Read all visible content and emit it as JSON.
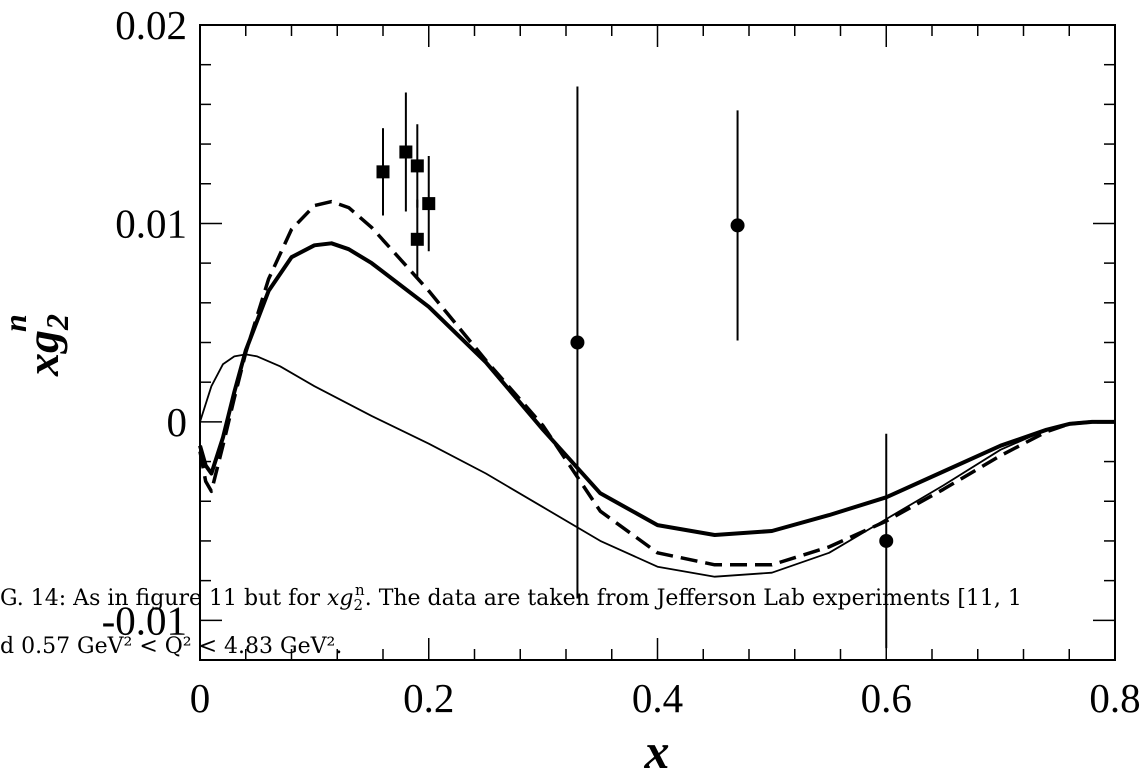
{
  "chart_data": {
    "type": "line",
    "xlabel": "x",
    "ylabel": {
      "base": "xg",
      "sub": "2",
      "sup": "n"
    },
    "xlim": [
      0,
      0.8
    ],
    "ylim": [
      -0.012,
      0.02
    ],
    "x_ticks": [
      0,
      0.2,
      0.4,
      0.6,
      0.8
    ],
    "x_tick_labels": [
      "0",
      "0.2",
      "0.4",
      "0.6",
      "0.8"
    ],
    "y_ticks": [
      -0.01,
      0,
      0.01,
      0.02
    ],
    "y_tick_labels": [
      "-0.01",
      "0",
      "0.01",
      "0.02"
    ],
    "grid": false,
    "series": [
      {
        "style": "thick-solid",
        "x": [
          0,
          0.005,
          0.01,
          0.02,
          0.03,
          0.04,
          0.06,
          0.08,
          0.1,
          0.115,
          0.13,
          0.15,
          0.2,
          0.25,
          0.3,
          0.35,
          0.4,
          0.45,
          0.5,
          0.55,
          0.6,
          0.65,
          0.7,
          0.74,
          0.76,
          0.78,
          0.8
        ],
        "y": [
          -0.0012,
          -0.0022,
          -0.0026,
          -0.0008,
          0.0015,
          0.0036,
          0.0066,
          0.0083,
          0.0089,
          0.009,
          0.0087,
          0.008,
          0.0058,
          0.003,
          -0.0004,
          -0.0036,
          -0.0052,
          -0.0057,
          -0.0055,
          -0.0047,
          -0.0038,
          -0.0025,
          -0.0012,
          -0.0004,
          -0.0001,
          0.0,
          0.0
        ]
      },
      {
        "style": "dashed",
        "x": [
          0,
          0.005,
          0.01,
          0.02,
          0.03,
          0.04,
          0.06,
          0.08,
          0.1,
          0.115,
          0.13,
          0.15,
          0.2,
          0.25,
          0.3,
          0.35,
          0.4,
          0.45,
          0.5,
          0.55,
          0.6,
          0.65,
          0.7,
          0.74,
          0.76,
          0.78,
          0.8
        ],
        "y": [
          -0.0015,
          -0.003,
          -0.0035,
          -0.0012,
          0.0012,
          0.0035,
          0.0072,
          0.0097,
          0.0109,
          0.0111,
          0.0108,
          0.0098,
          0.0066,
          0.0031,
          -0.0002,
          -0.0045,
          -0.0066,
          -0.0072,
          -0.0072,
          -0.0063,
          -0.005,
          -0.0034,
          -0.0017,
          -0.0005,
          -0.0001,
          0.0,
          0.0
        ]
      },
      {
        "style": "thin-solid",
        "x": [
          0,
          0.01,
          0.02,
          0.03,
          0.04,
          0.05,
          0.07,
          0.1,
          0.15,
          0.2,
          0.25,
          0.3,
          0.35,
          0.4,
          0.45,
          0.5,
          0.55,
          0.6,
          0.65,
          0.7,
          0.74,
          0.77,
          0.8
        ],
        "y": [
          0,
          0.0018,
          0.0029,
          0.0033,
          0.0034,
          0.0033,
          0.0028,
          0.0018,
          0.0003,
          -0.0011,
          -0.0026,
          -0.0043,
          -0.006,
          -0.0073,
          -0.0078,
          -0.0076,
          -0.0066,
          -0.0049,
          -0.0032,
          -0.0014,
          -0.0004,
          0.0,
          0.0
        ]
      }
    ],
    "points": [
      {
        "marker": "square",
        "x": 0.16,
        "y": 0.0126,
        "err": 0.0022
      },
      {
        "marker": "square",
        "x": 0.18,
        "y": 0.0136,
        "err": 0.003
      },
      {
        "marker": "square",
        "x": 0.19,
        "y": 0.0129,
        "err": 0.0021
      },
      {
        "marker": "square",
        "x": 0.19,
        "y": 0.0092,
        "err": 0.002
      },
      {
        "marker": "square",
        "x": 0.2,
        "y": 0.011,
        "err": 0.0024
      },
      {
        "marker": "circle",
        "x": 0.33,
        "y": 0.004,
        "err": 0.0129
      },
      {
        "marker": "circle",
        "x": 0.47,
        "y": 0.0099,
        "err": 0.0058
      },
      {
        "marker": "circle",
        "x": 0.6,
        "y": -0.006,
        "err": 0.0054
      }
    ]
  },
  "caption": {
    "line1_part1": "G. 14: As in figure 11 but for ",
    "line1_math_base": "xg",
    "line1_math_sub": "2",
    "line1_math_sup": "n",
    "line1_part2": ". The data are taken from Jefferson Lab experiments [11, 1",
    "line2": "d 0.57 GeV² < Q² < 4.83 GeV²."
  }
}
